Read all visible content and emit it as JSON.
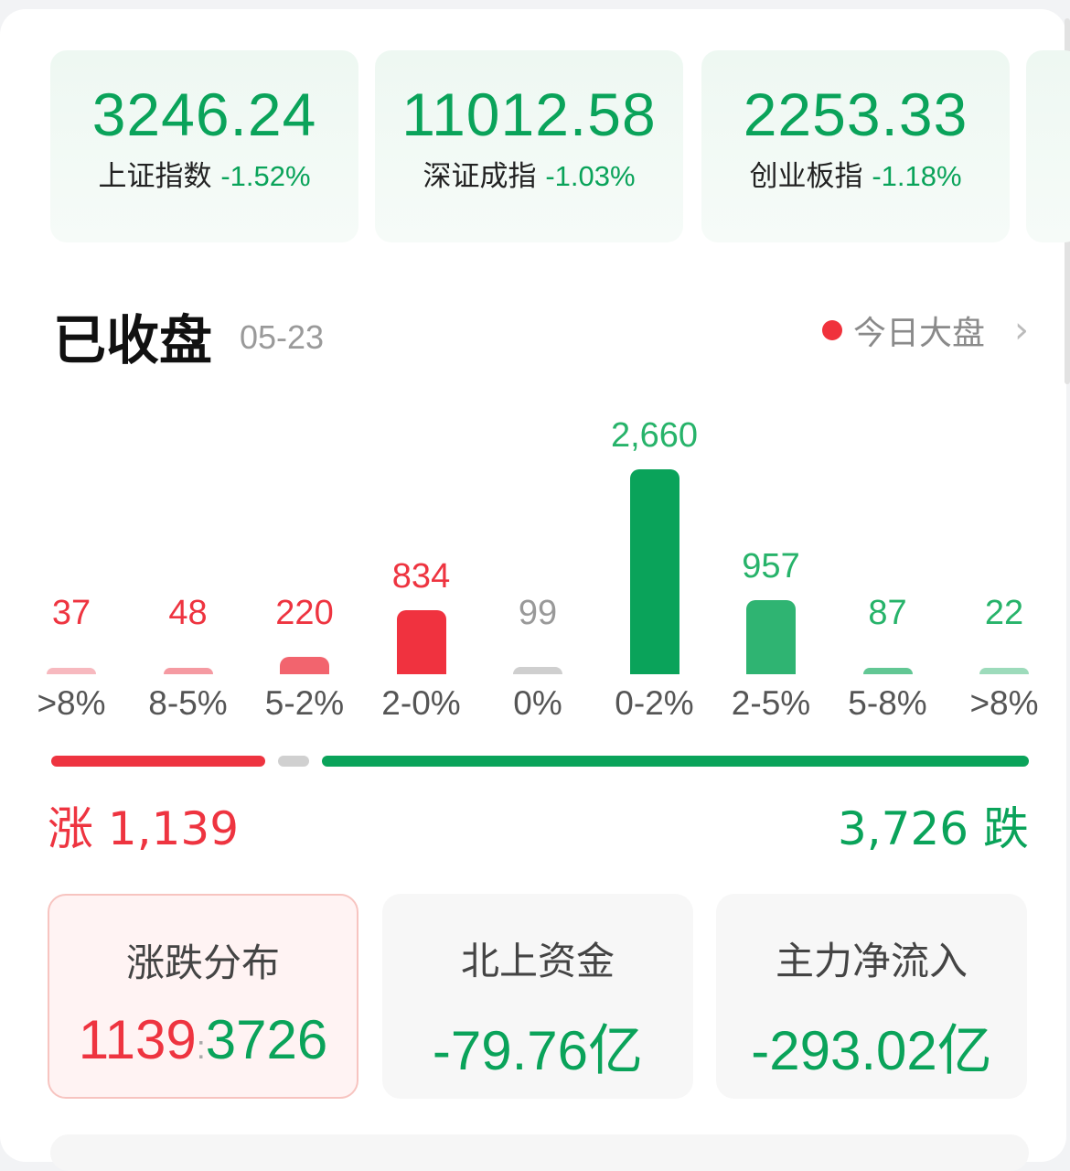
{
  "indices": [
    {
      "value": "3246.24",
      "name": "上证指数",
      "change": "-1.52%"
    },
    {
      "value": "11012.58",
      "name": "深证成指",
      "change": "-1.03%"
    },
    {
      "value": "2253.33",
      "name": "创业板指",
      "change": "-1.18%"
    }
  ],
  "header": {
    "title": "已收盘",
    "date": "05-23",
    "market_link": "今日大盘",
    "chevron": "›"
  },
  "chart_data": {
    "type": "bar",
    "categories": [
      ">8%",
      "8-5%",
      "5-2%",
      "2-0%",
      "0%",
      "0-2%",
      "2-5%",
      "5-8%",
      ">8%"
    ],
    "values": [
      37,
      48,
      220,
      834,
      99,
      2660,
      957,
      87,
      22
    ],
    "labels": [
      "37",
      "48",
      "220",
      "834",
      "99",
      "2,660",
      "957",
      "87",
      "22"
    ],
    "colors": [
      "#f7b9bf",
      "#f59aa2",
      "#f2646e",
      "#f0323f",
      "#cfcfcf",
      "#0aa35a",
      "#2fb472",
      "#62c794",
      "#9ddbbb"
    ],
    "label_colors": [
      "#ee3440",
      "#ee3440",
      "#ee3440",
      "#ee3440",
      "#999999",
      "#27b36a",
      "#27b36a",
      "#27b36a",
      "#27b36a"
    ]
  },
  "summary": {
    "up_label": "涨 1,139",
    "down_label": "3,726 跌",
    "up": 1139,
    "flat": 99,
    "down": 3726
  },
  "cards": [
    {
      "label": "涨跌分布",
      "up": "1139",
      "sep": ":",
      "down": "3726"
    },
    {
      "label": "北上资金",
      "value": "-79.76亿"
    },
    {
      "label": "主力净流入",
      "value": "-293.02亿"
    }
  ],
  "colors": {
    "up": "#ee3440",
    "down": "#0aa35a",
    "flat": "#cccccc"
  }
}
